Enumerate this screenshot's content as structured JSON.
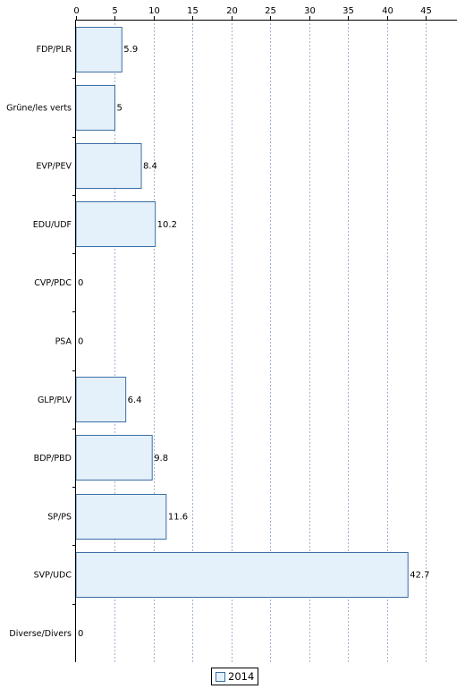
{
  "chart_data": {
    "type": "bar",
    "orientation": "horizontal",
    "categories": [
      "FDP/PLR",
      "Grüne/les verts",
      "EVP/PEV",
      "EDU/UDF",
      "CVP/PDC",
      "PSA",
      "GLP/PLV",
      "BDP/PBD",
      "SP/PS",
      "SVP/UDC",
      "Diverse/Divers"
    ],
    "series": [
      {
        "name": "2014",
        "values": [
          5.9,
          5,
          8.4,
          10.2,
          0,
          0,
          6.4,
          9.8,
          11.6,
          42.7,
          0
        ]
      }
    ],
    "data_labels": [
      "5.9",
      "5",
      "8.4",
      "10.2",
      "0",
      "0",
      "6.4",
      "9.8",
      "11.6",
      "42.7",
      "0"
    ],
    "x_ticks": [
      0,
      5,
      10,
      15,
      20,
      25,
      30,
      35,
      40,
      45
    ],
    "xlim": [
      0,
      49
    ],
    "x_axis_position": "top",
    "grid": true,
    "legend_position": "bottom-center",
    "colors": {
      "bar_fill": "#e4f0fa",
      "bar_stroke": "#3b6ea5",
      "grid": "#9fb3cc"
    }
  }
}
